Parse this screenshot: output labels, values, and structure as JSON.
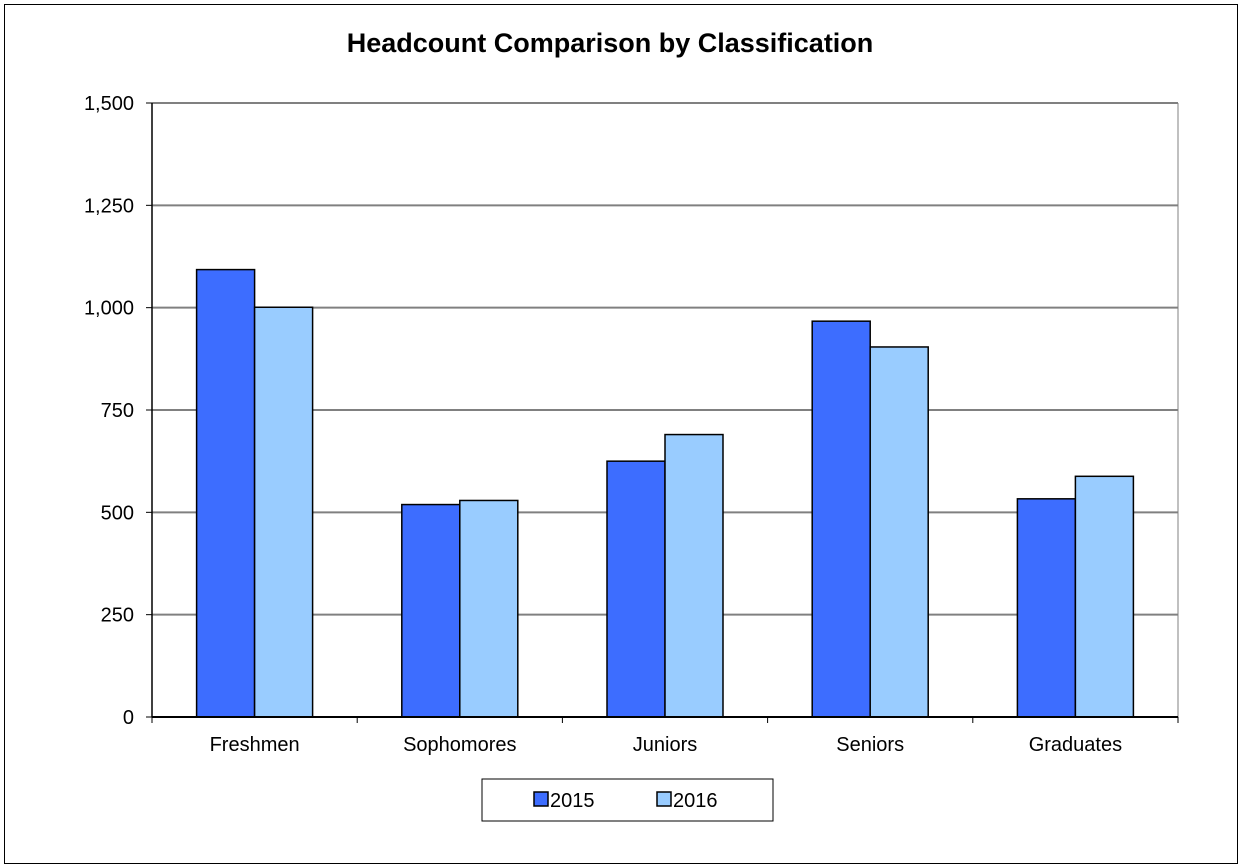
{
  "chart_data": {
    "type": "bar",
    "title": "Headcount Comparison by Classification",
    "xlabel": "",
    "ylabel": "",
    "categories": [
      "Freshmen",
      "Sophomores",
      "Juniors",
      "Seniors",
      "Graduates"
    ],
    "series": [
      {
        "name": "2015",
        "values": [
          1093,
          519,
          625,
          967,
          533
        ],
        "color": "#3d6dff"
      },
      {
        "name": "2016",
        "values": [
          1001,
          529,
          690,
          904,
          588
        ],
        "color": "#99ccff"
      }
    ],
    "ylim": [
      0,
      1500
    ],
    "yticks": [
      0,
      250,
      500,
      750,
      1000,
      1250,
      1500
    ],
    "ytick_labels": [
      "0",
      "250",
      "500",
      "750",
      "1,000",
      "1,250",
      "1,500"
    ],
    "grid": true,
    "legend_position": "bottom"
  }
}
